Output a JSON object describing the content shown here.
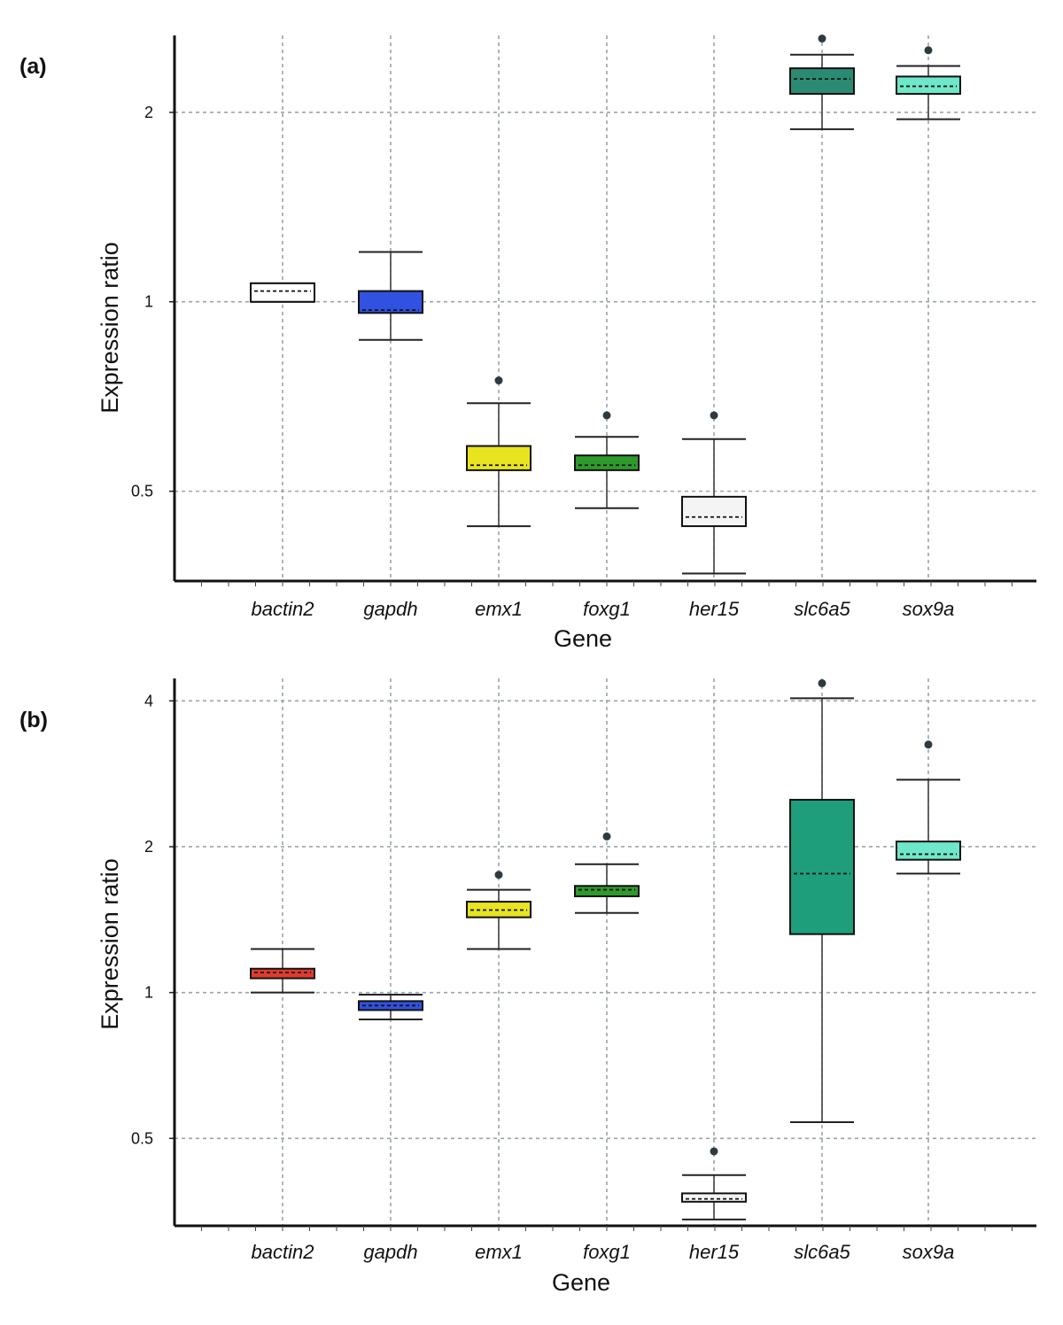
{
  "chart_data": [
    {
      "type": "box",
      "panel_label": "(a)",
      "xlabel": "Gene",
      "ylabel": "Expression ratio",
      "y_scale": "log2",
      "ylim": [
        0.36,
        2.65
      ],
      "yticks": [
        0.5,
        1,
        2
      ],
      "ytick_labels": [
        "0.5",
        "1",
        "2"
      ],
      "grid": true,
      "categories": [
        "bactin2",
        "gapdh",
        "emx1",
        "foxg1",
        "her15",
        "slc6a5",
        "sox9a"
      ],
      "boxes": [
        {
          "gene": "bactin2",
          "whisker_low": 1.0,
          "q1": 1.0,
          "median": 1.04,
          "q3": 1.07,
          "whisker_high": 1.07,
          "outlier": null,
          "color": "#ffffff"
        },
        {
          "gene": "gapdh",
          "whisker_low": 0.87,
          "q1": 0.96,
          "median": 0.97,
          "q3": 1.04,
          "whisker_high": 1.2,
          "outlier": null,
          "color": "#3152e0"
        },
        {
          "gene": "emx1",
          "whisker_low": 0.44,
          "q1": 0.54,
          "median": 0.55,
          "q3": 0.59,
          "whisker_high": 0.69,
          "outlier": 0.75,
          "color": "#e8e420"
        },
        {
          "gene": "foxg1",
          "whisker_low": 0.47,
          "q1": 0.54,
          "median": 0.55,
          "q3": 0.57,
          "whisker_high": 0.61,
          "outlier": 0.66,
          "color": "#2e9a2c"
        },
        {
          "gene": "her15",
          "whisker_low": 0.37,
          "q1": 0.44,
          "median": 0.455,
          "q3": 0.49,
          "whisker_high": 0.605,
          "outlier": 0.66,
          "color": "#f4f4f4"
        },
        {
          "gene": "slc6a5",
          "whisker_low": 1.88,
          "q1": 2.14,
          "median": 2.26,
          "q3": 2.35,
          "whisker_high": 2.47,
          "outlier": 2.62,
          "color": "#2a8a72"
        },
        {
          "gene": "sox9a",
          "whisker_low": 1.95,
          "q1": 2.14,
          "median": 2.2,
          "q3": 2.28,
          "whisker_high": 2.37,
          "outlier": 2.51,
          "color": "#6ee8c8"
        }
      ]
    },
    {
      "type": "box",
      "panel_label": "(b)",
      "xlabel": "Gene",
      "ylabel": "Expression ratio",
      "y_scale": "log2",
      "ylim": [
        0.33,
        4.45
      ],
      "yticks": [
        0.5,
        1,
        2,
        4
      ],
      "ytick_labels": [
        "0.5",
        "1",
        "2",
        "4"
      ],
      "grid": true,
      "categories": [
        "bactin2",
        "gapdh",
        "emx1",
        "foxg1",
        "her15",
        "slc6a5",
        "sox9a"
      ],
      "boxes": [
        {
          "gene": "bactin2",
          "whisker_low": 1.0,
          "q1": 1.07,
          "median": 1.1,
          "q3": 1.12,
          "whisker_high": 1.23,
          "outlier": null,
          "color": "#e03a2e"
        },
        {
          "gene": "gapdh",
          "whisker_low": 0.88,
          "q1": 0.92,
          "median": 0.94,
          "q3": 0.96,
          "whisker_high": 0.99,
          "outlier": null,
          "color": "#3152e0"
        },
        {
          "gene": "emx1",
          "whisker_low": 1.23,
          "q1": 1.43,
          "median": 1.48,
          "q3": 1.54,
          "whisker_high": 1.63,
          "outlier": 1.75,
          "color": "#e8e420"
        },
        {
          "gene": "foxg1",
          "whisker_low": 1.46,
          "q1": 1.58,
          "median": 1.63,
          "q3": 1.66,
          "whisker_high": 1.84,
          "outlier": 2.1,
          "color": "#2e9a2c"
        },
        {
          "gene": "her15",
          "whisker_low": 0.34,
          "q1": 0.37,
          "median": 0.375,
          "q3": 0.385,
          "whisker_high": 0.42,
          "outlier": 0.47,
          "color": "#f4f4f4"
        },
        {
          "gene": "slc6a5",
          "whisker_low": 0.54,
          "q1": 1.32,
          "median": 1.76,
          "q3": 2.5,
          "whisker_high": 4.05,
          "outlier": 4.35,
          "color": "#1f9e7c"
        },
        {
          "gene": "sox9a",
          "whisker_low": 1.76,
          "q1": 1.88,
          "median": 1.93,
          "q3": 2.05,
          "whisker_high": 2.75,
          "outlier": 3.25,
          "color": "#6ee8c8"
        }
      ]
    }
  ]
}
